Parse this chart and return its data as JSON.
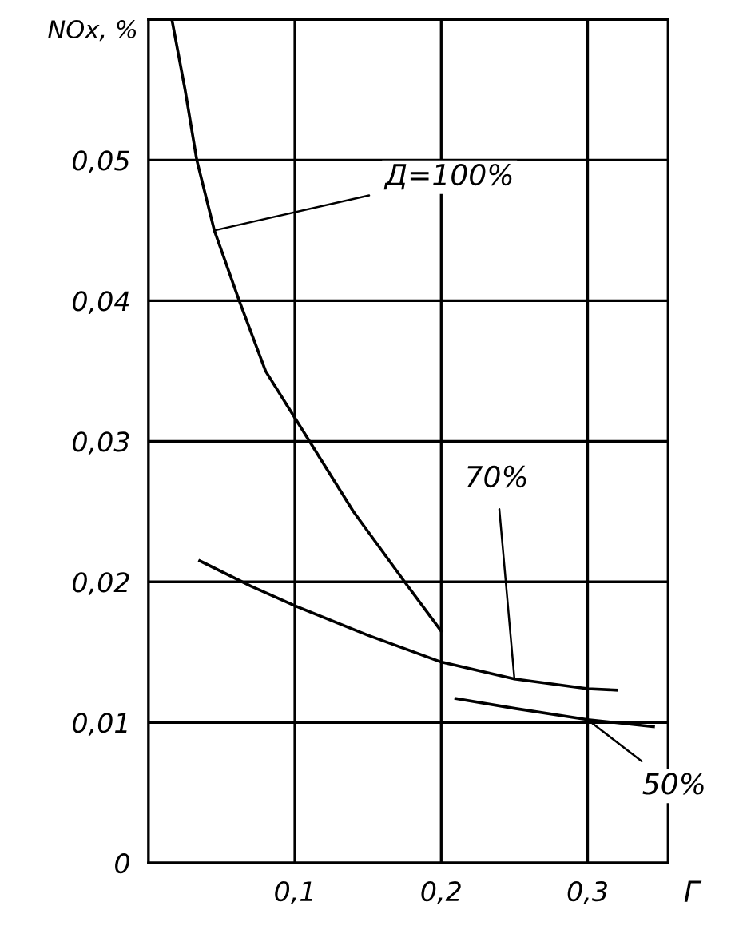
{
  "chart_data": {
    "type": "line",
    "xlabel": "Г",
    "ylabel": "NOx, %",
    "xlim": [
      0,
      0.355
    ],
    "ylim": [
      0,
      0.06
    ],
    "xticks": [
      {
        "value": 0.1,
        "label": "0,1"
      },
      {
        "value": 0.2,
        "label": "0,2"
      },
      {
        "value": 0.3,
        "label": "0,3"
      }
    ],
    "yticks": [
      {
        "value": 0,
        "label": "0"
      },
      {
        "value": 0.01,
        "label": "0,01"
      },
      {
        "value": 0.02,
        "label": "0,02"
      },
      {
        "value": 0.03,
        "label": "0,03"
      },
      {
        "value": 0.04,
        "label": "0,04"
      },
      {
        "value": 0.05,
        "label": "0,05"
      }
    ],
    "grid": true,
    "marker": "none",
    "line_style": "solid",
    "series": [
      {
        "color": "#000000",
        "x": [
          0.016,
          0.025,
          0.033,
          0.045,
          0.062,
          0.08,
          0.11,
          0.14,
          0.175,
          0.2
        ],
        "values": [
          0.06,
          0.055,
          0.05,
          0.045,
          0.04,
          0.035,
          0.03,
          0.025,
          0.02,
          0.0165
        ]
      },
      {
        "color": "#000000",
        "x": [
          0.035,
          0.07,
          0.1,
          0.15,
          0.2,
          0.25,
          0.3,
          0.32
        ],
        "values": [
          0.0215,
          0.0197,
          0.0183,
          0.0162,
          0.0143,
          0.0131,
          0.0124,
          0.0123
        ]
      },
      {
        "color": "#000000",
        "x": [
          0.21,
          0.25,
          0.3,
          0.345
        ],
        "values": [
          0.0117,
          0.011,
          0.0102,
          0.0097
        ]
      }
    ],
    "annotations": [
      {
        "text": "Д=100%",
        "x": 0.045,
        "y": 0.045
      },
      {
        "text": "70%",
        "x": 0.25,
        "y": 0.0131
      },
      {
        "text": "50%",
        "x": 0.3,
        "y": 0.0102
      }
    ]
  }
}
